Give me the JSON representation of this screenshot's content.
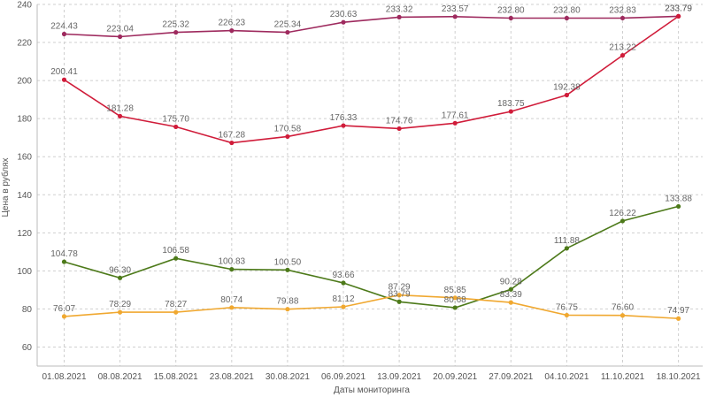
{
  "chart_data": {
    "type": "line",
    "xlabel": "Даты мониторинга",
    "ylabel": "Цена в рублях",
    "ylim": [
      50,
      240
    ],
    "y_ticks": [
      60,
      80,
      100,
      120,
      140,
      160,
      180,
      200,
      220,
      240
    ],
    "grid": true,
    "legend": "none",
    "categories": [
      "01.08.2021",
      "08.08.2021",
      "15.08.2021",
      "23.08.2021",
      "30.08.2021",
      "06.09.2021",
      "13.09.2021",
      "20.09.2021",
      "27.09.2021",
      "04.10.2021",
      "11.10.2021",
      "18.10.2021"
    ],
    "series": [
      {
        "color": "#9e2a5e",
        "values": [
          224.43,
          223.04,
          225.32,
          226.23,
          225.34,
          230.63,
          233.32,
          233.57,
          232.8,
          232.8,
          232.83,
          233.79
        ]
      },
      {
        "color": "#d01c3a",
        "values": [
          200.41,
          181.28,
          175.7,
          167.28,
          170.58,
          176.33,
          174.76,
          177.61,
          183.75,
          192.38,
          213.22,
          233.79
        ]
      },
      {
        "color": "#4d7a1a",
        "values": [
          104.78,
          96.3,
          106.58,
          100.83,
          100.5,
          93.66,
          83.79,
          80.68,
          90.28,
          111.88,
          126.22,
          133.88
        ]
      },
      {
        "color": "#f0a830",
        "values": [
          76.07,
          78.29,
          78.27,
          80.74,
          79.88,
          81.12,
          87.29,
          85.85,
          83.39,
          76.75,
          76.6,
          74.97
        ]
      }
    ]
  }
}
